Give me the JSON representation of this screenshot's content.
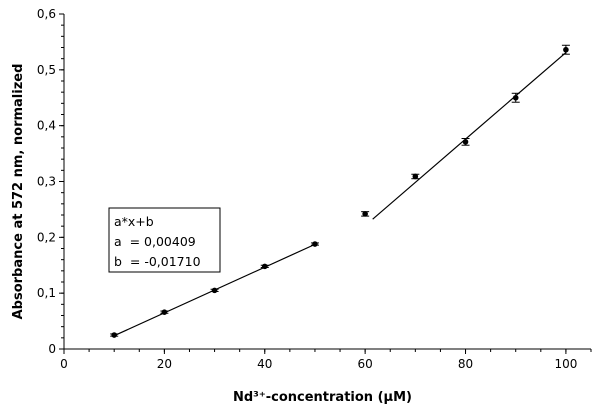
{
  "chart_data": {
    "type": "scatter",
    "title": "",
    "xlabel": "Nd³⁺-concentration (μM)",
    "ylabel": "Absorbance at 572 nm, normalized",
    "xlim": [
      0,
      105
    ],
    "ylim": [
      0,
      0.6
    ],
    "x_ticks": [
      "0",
      "20",
      "40",
      "60",
      "80",
      "100"
    ],
    "x_tick_values": [
      0,
      20,
      40,
      60,
      80,
      100
    ],
    "y_ticks": [
      "0",
      "0,1",
      "0,2",
      "0,3",
      "0,4",
      "0,5",
      "0,6"
    ],
    "y_tick_values": [
      0,
      0.1,
      0.2,
      0.3,
      0.4,
      0.5,
      0.6
    ],
    "grid": false,
    "series": [
      {
        "points": [
          {
            "x": 10,
            "y": 0.025,
            "err": 0.002
          },
          {
            "x": 20,
            "y": 0.066,
            "err": 0.002
          },
          {
            "x": 30,
            "y": 0.105,
            "err": 0.002
          },
          {
            "x": 40,
            "y": 0.148,
            "err": 0.002
          },
          {
            "x": 50,
            "y": 0.188,
            "err": 0.002
          }
        ],
        "fit": {
          "x_start": 10,
          "x_end": 50,
          "y_start": 0.0238,
          "y_end": 0.1874
        }
      },
      {
        "points": [
          {
            "x": 60,
            "y": 0.242,
            "err": 0.004
          },
          {
            "x": 70,
            "y": 0.309,
            "err": 0.004
          },
          {
            "x": 80,
            "y": 0.371,
            "err": 0.006
          },
          {
            "x": 90,
            "y": 0.45,
            "err": 0.008
          },
          {
            "x": 100,
            "y": 0.536,
            "err": 0.008
          }
        ],
        "fit": {
          "x_start": 61.5,
          "x_end": 100,
          "y_start": 0.2325,
          "y_end": 0.531
        }
      }
    ],
    "annotation": {
      "lines": [
        "a*x+b",
        "a  = 0,00409",
        "b  = -0,01710"
      ],
      "position": "center-left"
    },
    "color": "#000000"
  }
}
